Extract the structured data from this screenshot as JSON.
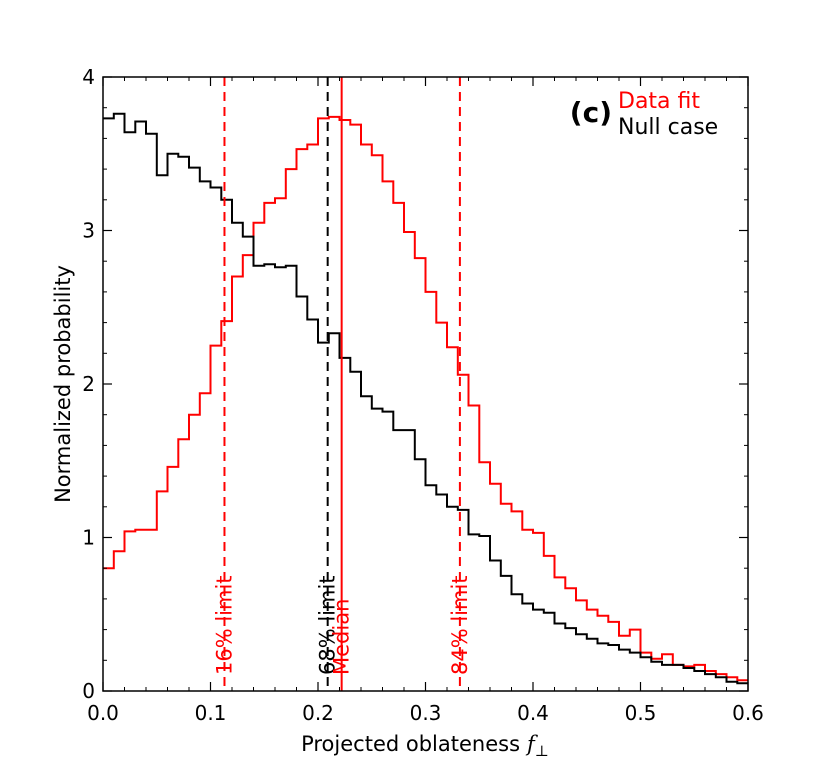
{
  "chart_data": {
    "type": "histogram-step",
    "panel_label": "(c)",
    "xlabel": "Projected oblateness",
    "xlabel_symbol": "f",
    "xlabel_subscript": "⊥",
    "ylabel": "Normalized probability",
    "xlim": [
      0.0,
      0.6
    ],
    "ylim": [
      0,
      4
    ],
    "xticks": [
      0.0,
      0.1,
      0.2,
      0.3,
      0.4,
      0.5,
      0.6
    ],
    "xtick_labels": [
      "0.0",
      "0.1",
      "0.2",
      "0.3",
      "0.4",
      "0.5",
      "0.6"
    ],
    "yticks": [
      0,
      1,
      2,
      3,
      4
    ],
    "ytick_labels": [
      "0",
      "1",
      "2",
      "3",
      "4"
    ],
    "bin_width": 0.01,
    "legend": [
      {
        "name": "Data fit",
        "color": "#ff0000"
      },
      {
        "name": "Null case",
        "color": "#000000"
      }
    ],
    "series": [
      {
        "name": "Data fit",
        "color": "#ff0000",
        "values": [
          0.8,
          0.91,
          1.04,
          1.05,
          1.05,
          1.3,
          1.46,
          1.64,
          1.8,
          1.94,
          2.25,
          2.41,
          2.7,
          2.84,
          3.05,
          3.18,
          3.21,
          3.4,
          3.53,
          3.56,
          3.73,
          3.74,
          3.72,
          3.69,
          3.56,
          3.49,
          3.32,
          3.18,
          2.99,
          2.82,
          2.6,
          2.4,
          2.24,
          2.06,
          1.86,
          1.49,
          1.35,
          1.22,
          1.17,
          1.05,
          1.03,
          0.88,
          0.74,
          0.67,
          0.59,
          0.53,
          0.49,
          0.45,
          0.36,
          0.4,
          0.25,
          0.21,
          0.24,
          0.17,
          0.16,
          0.17,
          0.13,
          0.11,
          0.09,
          0.07
        ]
      },
      {
        "name": "Null case",
        "color": "#000000",
        "values": [
          3.73,
          3.76,
          3.64,
          3.71,
          3.63,
          3.36,
          3.5,
          3.48,
          3.41,
          3.32,
          3.28,
          3.2,
          3.05,
          2.96,
          2.77,
          2.78,
          2.76,
          2.77,
          2.57,
          2.42,
          2.27,
          2.33,
          2.17,
          2.08,
          1.92,
          1.84,
          1.82,
          1.7,
          1.7,
          1.51,
          1.34,
          1.28,
          1.2,
          1.18,
          1.02,
          1.01,
          0.85,
          0.75,
          0.63,
          0.57,
          0.53,
          0.51,
          0.44,
          0.41,
          0.37,
          0.34,
          0.31,
          0.3,
          0.27,
          0.25,
          0.22,
          0.19,
          0.17,
          0.17,
          0.15,
          0.13,
          0.11,
          0.09,
          0.06,
          0.05
        ]
      }
    ],
    "vlines": [
      {
        "x": 0.113,
        "label": "16% limit",
        "color": "#ff0000",
        "style": "dashed"
      },
      {
        "x": 0.209,
        "label": "68% limit",
        "color": "#000000",
        "style": "dashed"
      },
      {
        "x": 0.222,
        "label": "Median",
        "color": "#ff0000",
        "style": "solid"
      },
      {
        "x": 0.332,
        "label": "84% limit",
        "color": "#ff0000",
        "style": "dashed"
      }
    ]
  }
}
